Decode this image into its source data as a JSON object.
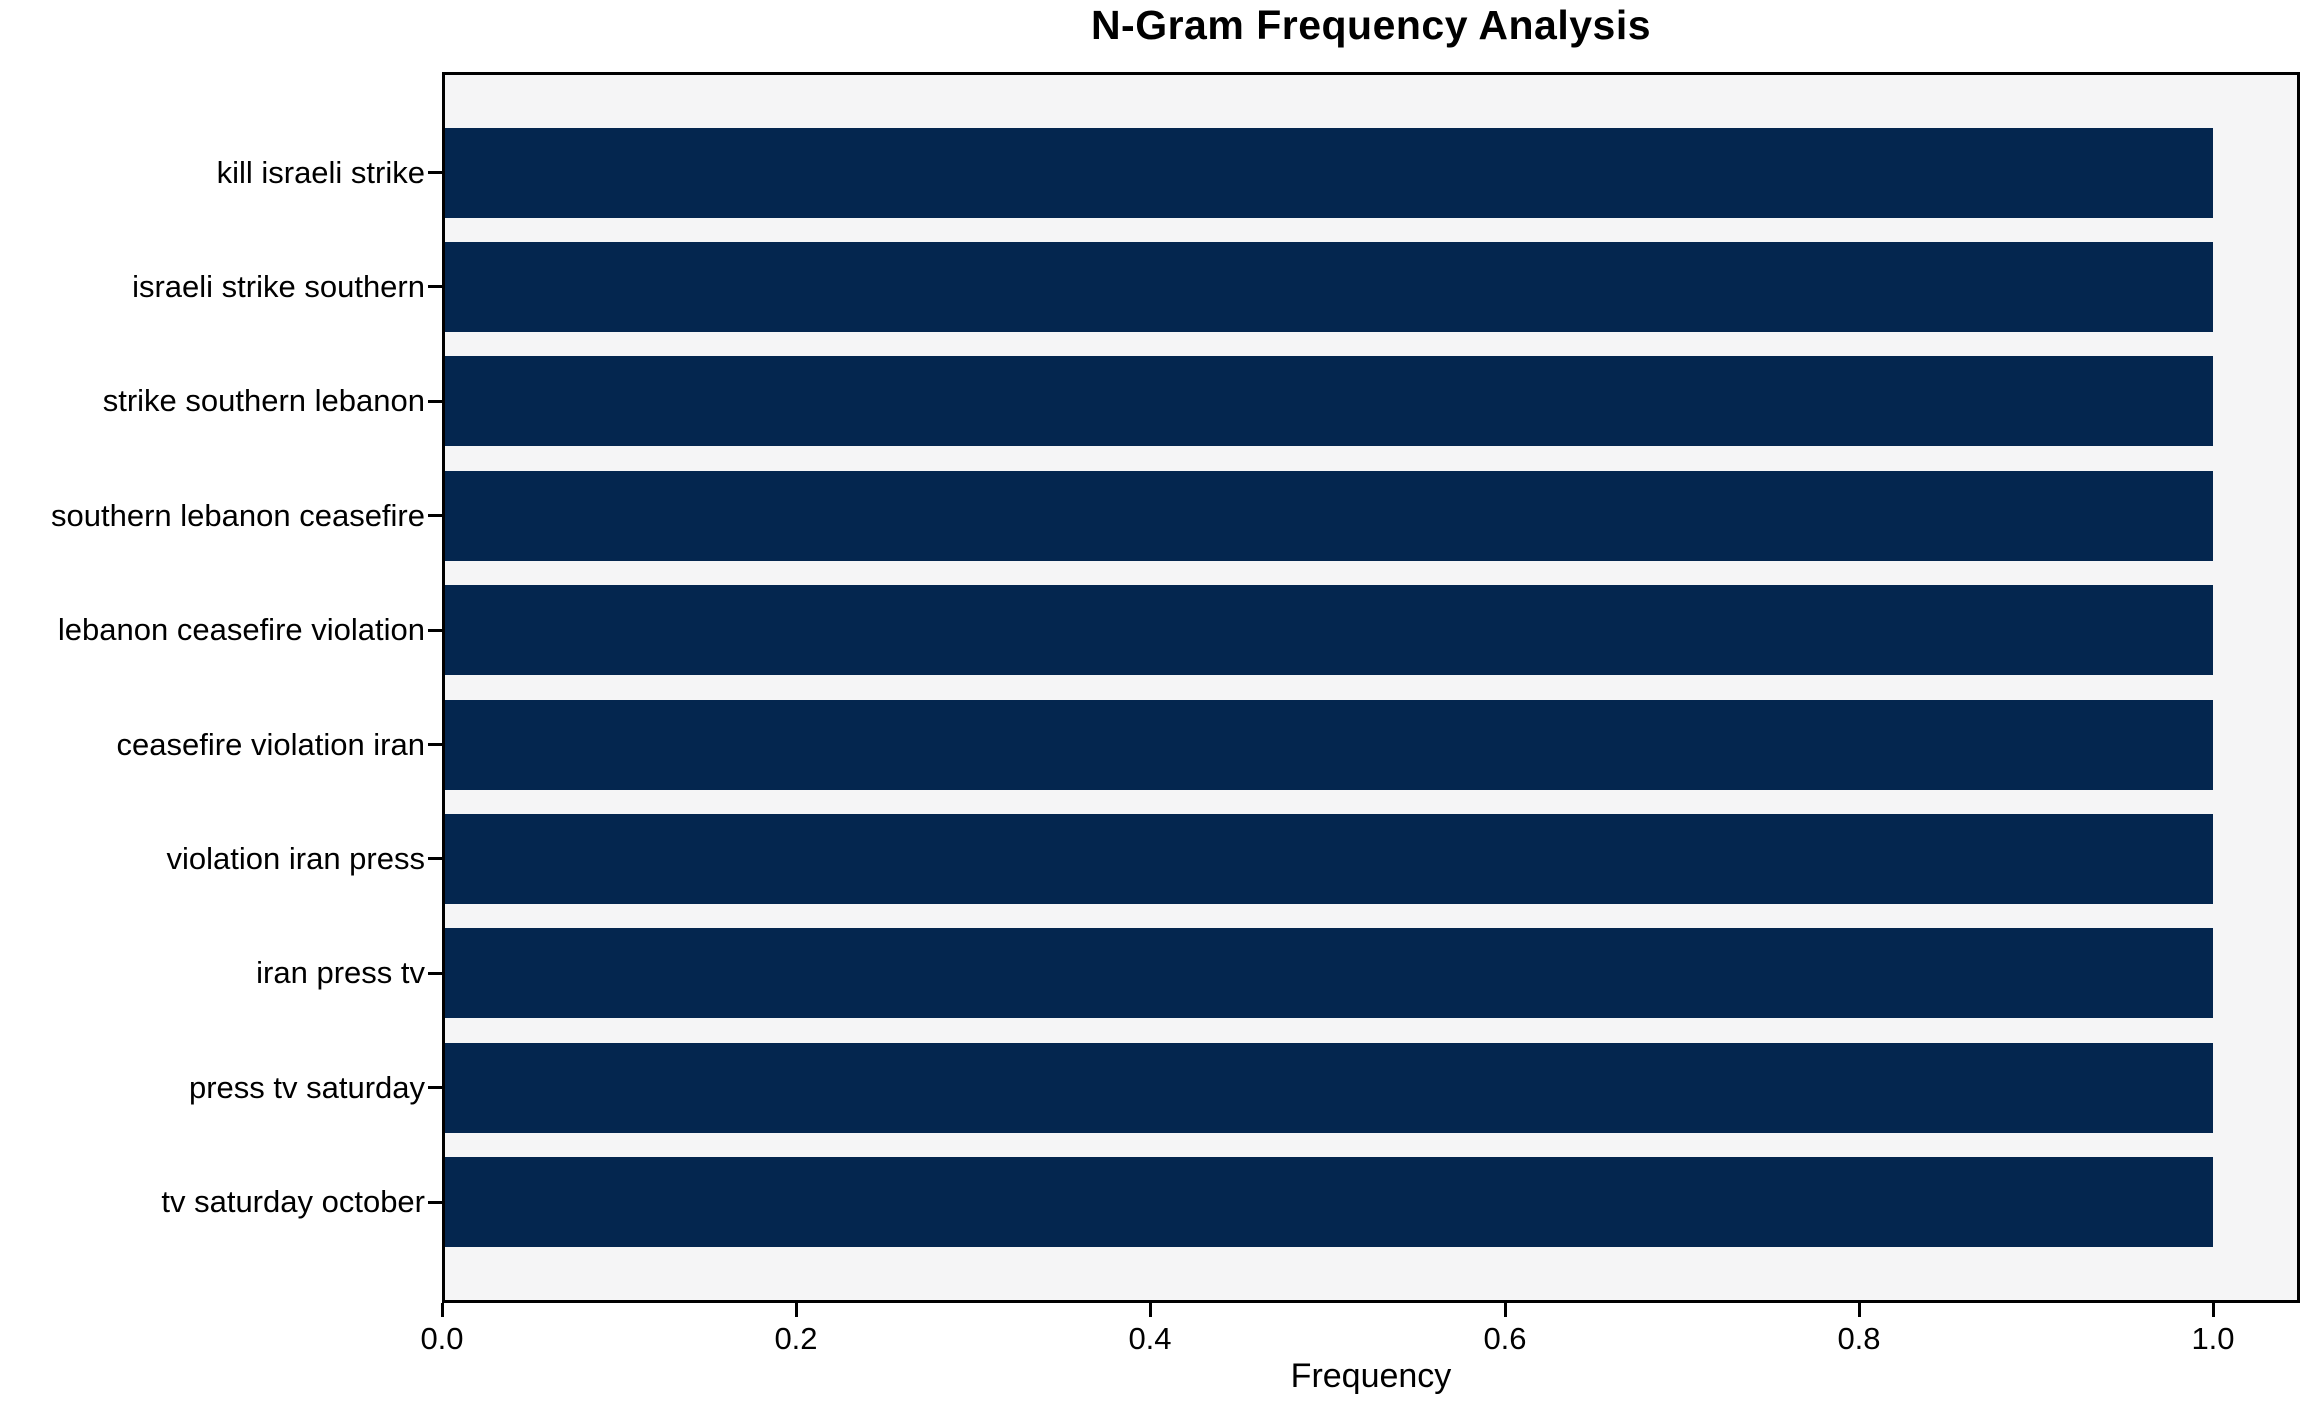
{
  "chart_data": {
    "type": "bar",
    "orientation": "horizontal",
    "title": "N-Gram Frequency Analysis",
    "xlabel": "Frequency",
    "ylabel": "",
    "categories": [
      "kill israeli strike",
      "israeli strike southern",
      "strike southern lebanon",
      "southern lebanon ceasefire",
      "lebanon ceasefire violation",
      "ceasefire violation iran",
      "violation iran press",
      "iran press tv",
      "press tv saturday",
      "tv saturday october"
    ],
    "values": [
      1.0,
      1.0,
      1.0,
      1.0,
      1.0,
      1.0,
      1.0,
      1.0,
      1.0,
      1.0
    ],
    "xticks": [
      0.0,
      0.2,
      0.4,
      0.6,
      0.8,
      1.0
    ],
    "xtick_labels": [
      "0.0",
      "0.2",
      "0.4",
      "0.6",
      "0.8",
      "1.0"
    ],
    "xlim": [
      0.0,
      1.049
    ],
    "grid": false,
    "legend": false,
    "bar_color": "#04264f",
    "plot_background": "#f5f5f6",
    "figure_background": "#ffffff",
    "text_color": "#000000"
  }
}
